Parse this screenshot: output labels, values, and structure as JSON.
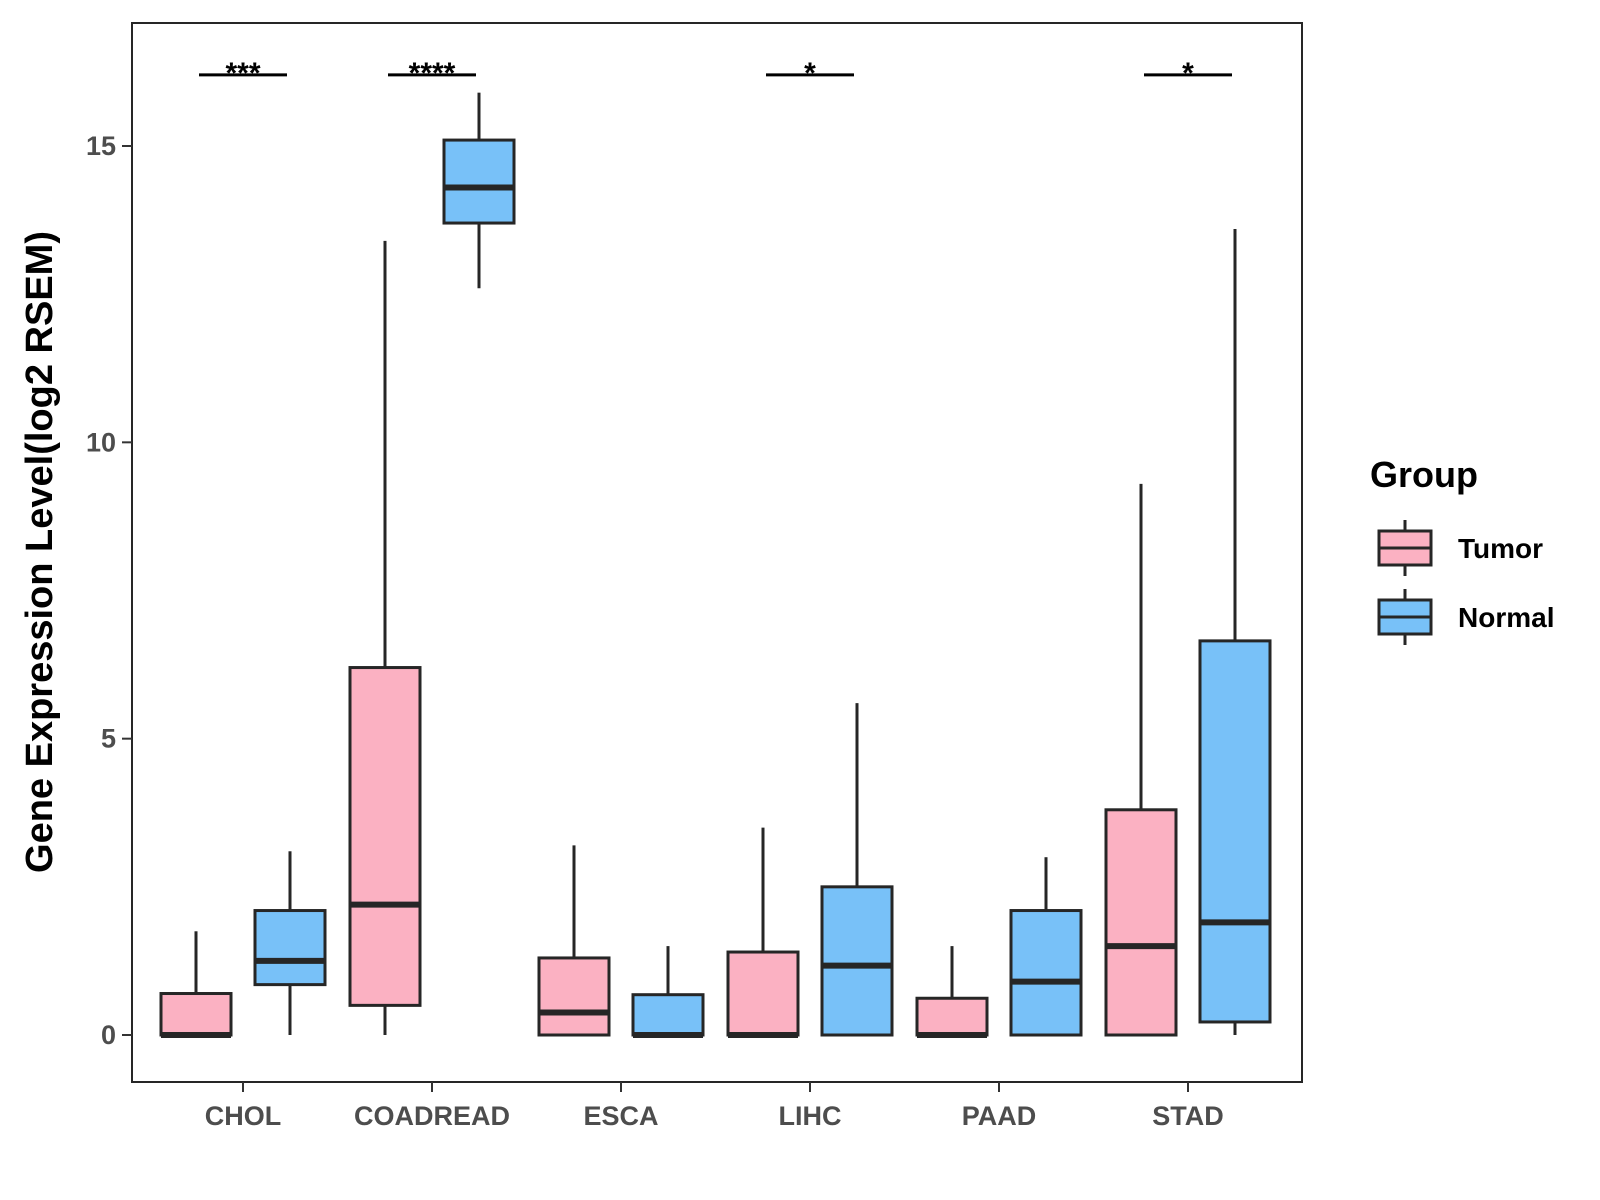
{
  "chart_data": {
    "type": "boxplot",
    "title": "",
    "xlabel": "",
    "ylabel": "Gene Expression Level(log2 RSEM)",
    "ylim": [
      -0.8,
      17.0
    ],
    "yticks": [
      0,
      5,
      10,
      15
    ],
    "categories": [
      "CHOL",
      "COADREAD",
      "ESCA",
      "LIHC",
      "PAAD",
      "STAD"
    ],
    "grid": false,
    "legend": {
      "title": "Group",
      "position": "right",
      "entries": [
        "Tumor",
        "Normal"
      ]
    },
    "colors": {
      "Tumor": "#FBB1C2",
      "Normal": "#78C1F8",
      "outline": "#262626"
    },
    "series": [
      {
        "name": "Tumor",
        "boxes": [
          {
            "whisker_low": 0.0,
            "q1": 0.0,
            "median": 0.0,
            "q3": 0.7,
            "whisker_high": 1.75
          },
          {
            "whisker_low": 0.0,
            "q1": 0.5,
            "median": 2.2,
            "q3": 6.2,
            "whisker_high": 13.4
          },
          {
            "whisker_low": 0.0,
            "q1": 0.0,
            "median": 0.38,
            "q3": 1.3,
            "whisker_high": 3.2
          },
          {
            "whisker_low": 0.0,
            "q1": 0.0,
            "median": 0.0,
            "q3": 1.4,
            "whisker_high": 3.5
          },
          {
            "whisker_low": 0.0,
            "q1": 0.0,
            "median": 0.0,
            "q3": 0.62,
            "whisker_high": 1.5
          },
          {
            "whisker_low": 0.0,
            "q1": 0.0,
            "median": 1.5,
            "q3": 3.8,
            "whisker_high": 9.3
          }
        ]
      },
      {
        "name": "Normal",
        "boxes": [
          {
            "whisker_low": 0.0,
            "q1": 0.85,
            "median": 1.25,
            "q3": 2.1,
            "whisker_high": 3.1
          },
          {
            "whisker_low": 12.6,
            "q1": 13.7,
            "median": 14.3,
            "q3": 15.1,
            "whisker_high": 15.9
          },
          {
            "whisker_low": 0.0,
            "q1": 0.0,
            "median": 0.0,
            "q3": 0.68,
            "whisker_high": 1.5
          },
          {
            "whisker_low": 0.0,
            "q1": 0.0,
            "median": 1.17,
            "q3": 2.5,
            "whisker_high": 5.6
          },
          {
            "whisker_low": 0.0,
            "q1": 0.0,
            "median": 0.9,
            "q3": 2.1,
            "whisker_high": 3.0
          },
          {
            "whisker_low": 0.0,
            "q1": 0.22,
            "median": 1.9,
            "q3": 6.65,
            "whisker_high": 13.6
          }
        ]
      }
    ],
    "annotations": [
      {
        "category": "CHOL",
        "label": "***"
      },
      {
        "category": "COADREAD",
        "label": "****"
      },
      {
        "category": "LIHC",
        "label": "*"
      },
      {
        "category": "STAD",
        "label": "*"
      }
    ],
    "annotation_y": 16.2
  }
}
